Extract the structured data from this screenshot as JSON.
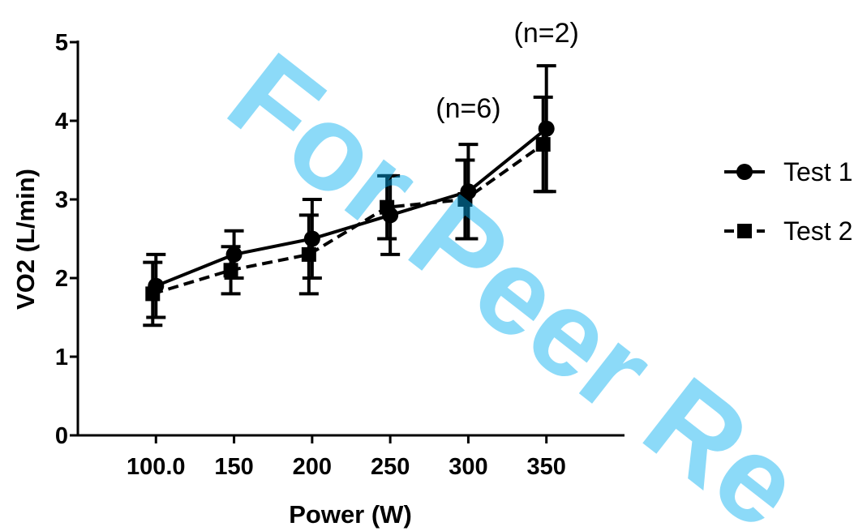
{
  "watermark": {
    "text": "For Peer Re",
    "color": "#00aeef"
  },
  "chart_data": {
    "type": "line",
    "xlabel": "Power (W)",
    "ylabel": "VO2 (L/min)",
    "categories": [
      "100.0",
      "150",
      "200",
      "250",
      "300",
      "350"
    ],
    "x": [
      100,
      150,
      200,
      250,
      300,
      350
    ],
    "ylim": [
      0,
      5
    ],
    "yticks": [
      0,
      1,
      2,
      3,
      4,
      5
    ],
    "grid": false,
    "legend_position": "right",
    "series": [
      {
        "name": "Test 1",
        "marker": "circle",
        "line_style": "solid",
        "color": "#000000",
        "values": [
          1.9,
          2.3,
          2.5,
          2.8,
          3.1,
          3.9
        ],
        "error": [
          0.4,
          0.3,
          0.5,
          0.5,
          0.6,
          0.8
        ]
      },
      {
        "name": "Test 2",
        "marker": "square",
        "line_style": "dashed",
        "color": "#000000",
        "values": [
          1.8,
          2.1,
          2.3,
          2.9,
          3.0,
          3.7
        ],
        "error": [
          0.4,
          0.3,
          0.5,
          0.4,
          0.5,
          0.6
        ]
      }
    ],
    "annotations": [
      {
        "text": "(n=6)",
        "x": 300
      },
      {
        "text": "(n=2)",
        "x": 350
      }
    ]
  }
}
